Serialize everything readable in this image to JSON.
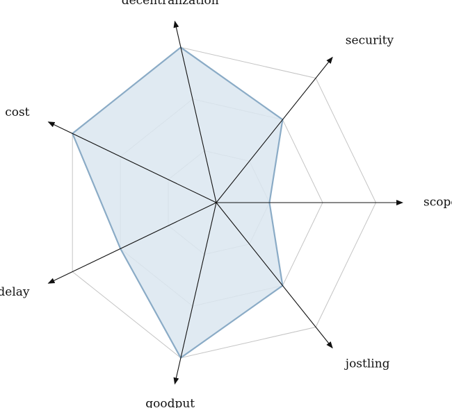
{
  "chart_data": {
    "type": "radar",
    "axes": [
      "scope",
      "security",
      "decentralization",
      "cost",
      "delay",
      "goodput",
      "jostling"
    ],
    "rlim": [
      0,
      3
    ],
    "grid_levels": [
      1,
      2,
      3
    ],
    "series": [
      {
        "values": [
          1,
          2,
          3,
          3,
          2,
          3,
          2
        ]
      }
    ],
    "grid": true,
    "colors": {
      "grid": "#c4c4c4",
      "axis": "#111111",
      "series_stroke": "#8aabc6",
      "series_fill": "#dbe6f0"
    }
  }
}
